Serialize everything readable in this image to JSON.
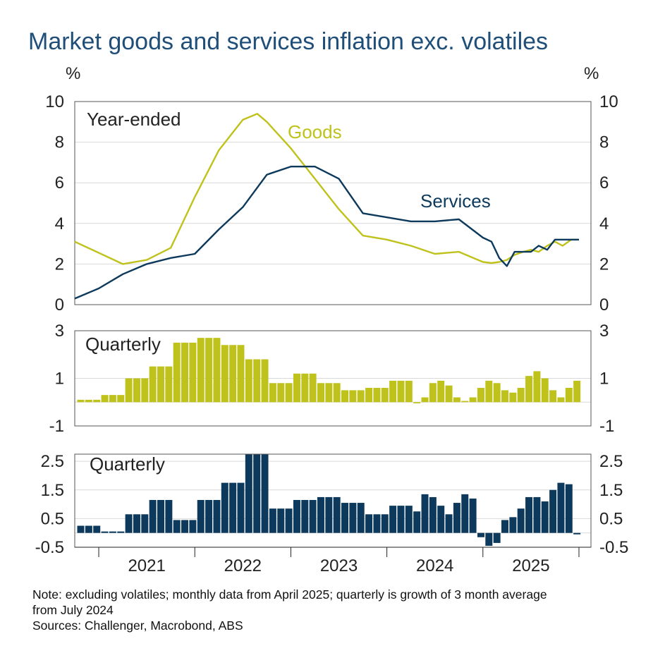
{
  "title": "Market goods and services inflation exc. volatiles",
  "colors": {
    "goods": "#bfc21b",
    "services": "#0d3a5c",
    "title": "#1f4e79",
    "grid": "#d9d9d9",
    "frame": "#555555"
  },
  "chart_data": [
    {
      "type": "line",
      "panel": "top",
      "annotation": "Year-ended",
      "unit_left": "%",
      "unit_right": "%",
      "ylim": [
        0,
        10
      ],
      "yticks": [
        "0",
        "2",
        "4",
        "6",
        "8",
        "10"
      ],
      "series": [
        {
          "name": "Goods",
          "x": [
            2020.5,
            2021.0,
            2021.25,
            2021.5,
            2021.75,
            2022.0,
            2022.25,
            2022.4,
            2022.5,
            2022.75,
            2023.0,
            2023.25,
            2023.5,
            2023.75,
            2024.0,
            2024.25,
            2024.5,
            2024.75,
            2024.84,
            2024.92,
            2025.0,
            2025.08,
            2025.17,
            2025.25,
            2025.33,
            2025.42,
            2025.5,
            2025.58,
            2025.67,
            2025.75
          ],
          "values": [
            3.1,
            2.0,
            2.2,
            2.8,
            5.3,
            7.6,
            9.1,
            9.4,
            9.0,
            7.7,
            6.2,
            4.7,
            3.4,
            3.2,
            2.9,
            2.5,
            2.6,
            2.1,
            2.05,
            2.1,
            2.2,
            2.45,
            2.6,
            2.7,
            2.6,
            2.9,
            3.1,
            2.9,
            3.2,
            3.2
          ]
        },
        {
          "name": "Services",
          "x": [
            2020.5,
            2020.75,
            2021.0,
            2021.25,
            2021.5,
            2021.75,
            2022.0,
            2022.25,
            2022.5,
            2022.75,
            2023.0,
            2023.25,
            2023.5,
            2023.75,
            2024.0,
            2024.25,
            2024.5,
            2024.75,
            2024.84,
            2024.92,
            2025.0,
            2025.08,
            2025.17,
            2025.25,
            2025.33,
            2025.42,
            2025.5,
            2025.58,
            2025.67,
            2025.75
          ],
          "values": [
            0.3,
            0.8,
            1.5,
            2.0,
            2.3,
            2.5,
            3.7,
            4.8,
            6.4,
            6.8,
            6.8,
            6.2,
            4.5,
            4.3,
            4.1,
            4.1,
            4.2,
            3.3,
            3.1,
            2.3,
            1.9,
            2.6,
            2.6,
            2.6,
            2.9,
            2.7,
            3.2,
            3.2,
            3.2,
            3.2
          ]
        }
      ]
    },
    {
      "type": "bar",
      "panel": "middle",
      "annotation": "Quarterly",
      "series_name": "Goods",
      "ylim": [
        -1,
        3
      ],
      "yticks": [
        "-1",
        "1",
        "3"
      ],
      "values": [
        0.1,
        0.1,
        0.1,
        0.3,
        0.3,
        0.3,
        1.0,
        1.0,
        1.0,
        1.5,
        1.5,
        1.5,
        2.5,
        2.5,
        2.5,
        2.7,
        2.7,
        2.7,
        2.4,
        2.4,
        2.4,
        1.8,
        1.8,
        1.8,
        0.8,
        0.8,
        0.8,
        1.2,
        1.2,
        1.2,
        0.8,
        0.8,
        0.8,
        0.5,
        0.5,
        0.5,
        0.6,
        0.6,
        0.6,
        0.9,
        0.9,
        0.9,
        -0.05,
        0.2,
        0.8,
        0.9,
        0.7,
        0.2,
        0.05,
        0.2,
        0.6,
        0.9,
        0.8,
        0.5,
        0.4,
        0.6,
        1.1,
        1.3,
        1.0,
        0.5,
        0.2,
        0.6,
        0.9
      ]
    },
    {
      "type": "bar",
      "panel": "bottom",
      "annotation": "Quarterly",
      "series_name": "Services",
      "ylim": [
        -0.5,
        2.75
      ],
      "yticks": [
        "-0.5",
        "0.5",
        "1.5",
        "2.5"
      ],
      "xticks": [
        "2021",
        "2022",
        "2023",
        "2024",
        "2025"
      ],
      "values": [
        0.25,
        0.25,
        0.25,
        0.05,
        0.05,
        0.05,
        0.65,
        0.65,
        0.65,
        1.15,
        1.15,
        1.15,
        0.45,
        0.45,
        0.45,
        1.15,
        1.15,
        1.15,
        1.75,
        1.75,
        1.75,
        2.75,
        2.75,
        2.75,
        0.85,
        0.85,
        0.85,
        1.15,
        1.15,
        1.15,
        1.25,
        1.25,
        1.25,
        1.05,
        1.05,
        1.05,
        0.65,
        0.65,
        0.65,
        0.95,
        0.95,
        0.95,
        0.75,
        1.35,
        1.25,
        0.95,
        0.65,
        1.05,
        1.35,
        1.2,
        -0.15,
        -0.45,
        -0.35,
        0.45,
        0.55,
        0.85,
        1.25,
        1.25,
        1.1,
        1.5,
        1.75,
        1.7,
        -0.05
      ]
    }
  ],
  "notes": {
    "line1": "Note: excluding volatiles; monthly data from April 2025; quarterly is growth of 3 month average",
    "line2": "from July 2024",
    "line3": "Sources: Challenger, Macrobond, ABS"
  }
}
